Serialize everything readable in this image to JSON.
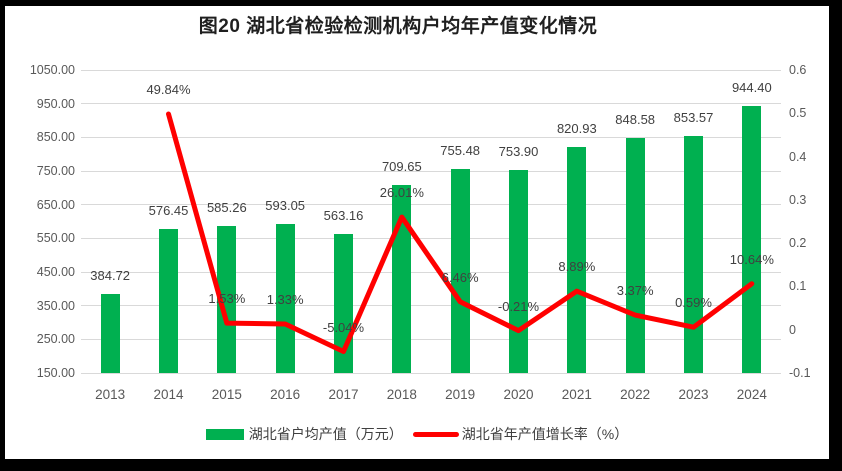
{
  "title": "图20 湖北省检验检测机构户均年产值变化情况",
  "chart_data": {
    "type": "bar",
    "subtype": "combo-bar-line",
    "title": "图20 湖北省检验检测机构户均年产值变化情况",
    "categories": [
      "2013",
      "2014",
      "2015",
      "2016",
      "2017",
      "2018",
      "2019",
      "2020",
      "2021",
      "2022",
      "2023",
      "2024"
    ],
    "series": [
      {
        "name": "湖北省户均产值（万元）",
        "type": "bar",
        "axis": "left",
        "values": [
          384.72,
          576.45,
          585.26,
          593.05,
          563.16,
          709.65,
          755.48,
          753.9,
          820.93,
          848.58,
          853.57,
          944.4
        ],
        "labels": [
          "384.72",
          "576.45",
          "585.26",
          "593.05",
          "563.16",
          "709.65",
          "755.48",
          "753.90",
          "820.93",
          "848.58",
          "853.57",
          "944.40"
        ]
      },
      {
        "name": "湖北省年产值增长率（%）",
        "type": "line",
        "axis": "right",
        "values": [
          null,
          0.4984,
          0.0153,
          0.0133,
          -0.0504,
          0.2601,
          0.0646,
          -0.0021,
          0.0889,
          0.0337,
          0.0059,
          0.1064
        ],
        "labels": [
          "",
          "49.84%",
          "1.53%",
          "1.33%",
          "-5.04%",
          "26.01%",
          "6.46%",
          "-0.21%",
          "8.89%",
          "3.37%",
          "0.59%",
          "10.64%"
        ]
      }
    ],
    "left_axis": {
      "min": 150,
      "max": 1050,
      "step": 100,
      "tick_labels": [
        "150.00",
        "250.00",
        "350.00",
        "450.00",
        "550.00",
        "650.00",
        "750.00",
        "850.00",
        "950.00",
        "1050.00"
      ]
    },
    "right_axis": {
      "min": -0.1,
      "max": 0.6,
      "step": 0.1,
      "tick_labels": [
        "-0.1",
        "0",
        "0.1",
        "0.2",
        "0.3",
        "0.4",
        "0.5",
        "0.6"
      ]
    },
    "grid": true,
    "legend_position": "bottom"
  },
  "colors": {
    "bar": "#00B050",
    "line": "#FF0000",
    "grid": "#D9D9D9",
    "tick_text": "#595959",
    "data_label": "#404040",
    "frame": "#000000",
    "background": "#FFFFFF"
  }
}
